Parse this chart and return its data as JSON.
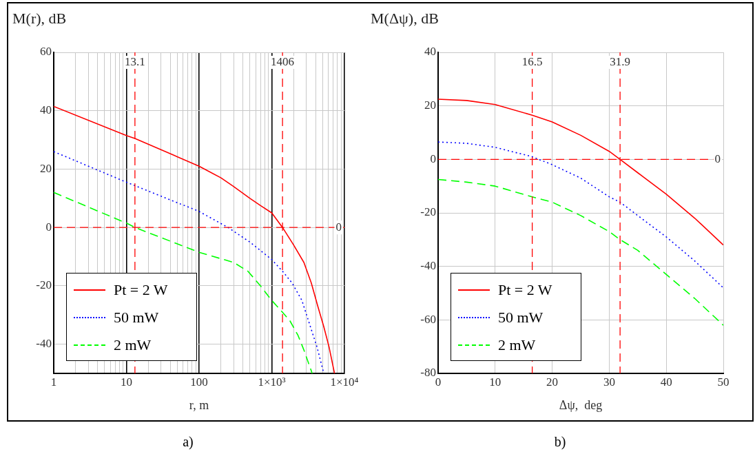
{
  "chart_data": [
    {
      "type": "line",
      "ylabel": "M(r), dB",
      "xlabel": "r, m",
      "log": "x",
      "grid": true,
      "legend": "bottom left",
      "xlim": [
        1,
        10000
      ],
      "ylim": [
        -50,
        60
      ],
      "xticks": [
        1,
        {
          "value": 2,
          "label": null
        },
        {
          "value": 3,
          "label": null
        },
        {
          "value": 4,
          "label": null
        },
        {
          "value": 5,
          "label": null
        },
        {
          "value": 6,
          "label": null
        },
        {
          "value": 7,
          "label": null
        },
        {
          "value": 8,
          "label": null
        },
        {
          "value": 9,
          "label": null
        },
        10,
        {
          "value": 20,
          "label": null
        },
        {
          "value": 30,
          "label": null
        },
        {
          "value": 40,
          "label": null
        },
        {
          "value": 50,
          "label": null
        },
        {
          "value": 60,
          "label": null
        },
        {
          "value": 70,
          "label": null
        },
        {
          "value": 80,
          "label": null
        },
        {
          "value": 90,
          "label": null
        },
        100,
        {
          "value": 200,
          "label": null
        },
        {
          "value": 300,
          "label": null
        },
        {
          "value": 400,
          "label": null
        },
        {
          "value": 500,
          "label": null
        },
        {
          "value": 600,
          "label": null
        },
        {
          "value": 700,
          "label": null
        },
        {
          "value": 800,
          "label": null
        },
        {
          "value": 900,
          "label": null
        },
        {
          "value": 1000,
          "label": "1×10³"
        },
        {
          "value": 2000,
          "label": null
        },
        {
          "value": 3000,
          "label": null
        },
        {
          "value": 4000,
          "label": null
        },
        {
          "value": 5000,
          "label": null
        },
        {
          "value": 6000,
          "label": null
        },
        {
          "value": 7000,
          "label": null
        },
        {
          "value": 8000,
          "label": null
        },
        {
          "value": 9000,
          "label": null
        },
        {
          "value": 10000,
          "label": "1×10⁴"
        }
      ],
      "yticks": [
        -40,
        -20,
        0,
        20,
        40,
        60
      ],
      "series": [
        {
          "name": "Pt = 2 W",
          "color": "#ff0000",
          "line_style": "solid",
          "x": [
            1,
            10,
            13.1,
            100,
            200,
            300,
            500,
            700,
            1000,
            1406,
            2000,
            2770,
            3500,
            4300,
            5200,
            6150,
            7300
          ],
          "values": [
            41.5,
            31.5,
            30.5,
            21,
            17,
            14,
            10,
            7.5,
            5,
            0,
            -6,
            -12,
            -19,
            -27,
            -34,
            -41,
            -50
          ]
        },
        {
          "name": "50 mW",
          "color": "#0000ff",
          "line_style": "dotted",
          "x": [
            1,
            10,
            100,
            250,
            500,
            1000,
            1406,
            1900,
            2600,
            3300,
            4200,
            5200
          ],
          "values": [
            26,
            15.5,
            5.5,
            0,
            -5,
            -11,
            -15,
            -19,
            -25,
            -33,
            -41,
            -50
          ]
        },
        {
          "name": "2 mW",
          "color": "#00ff00",
          "line_style": "dashed",
          "x": [
            1,
            10,
            13.1,
            100,
            300,
            470,
            700,
            1000,
            1400,
            1780,
            2300,
            2770,
            3600
          ],
          "values": [
            12,
            1.5,
            0,
            -8.5,
            -12,
            -15,
            -20,
            -25,
            -29,
            -32,
            -37,
            -42,
            -50
          ]
        }
      ],
      "ref_lines": [
        {
          "axis": "x",
          "value": 13.1,
          "label": "13.1",
          "color": "#ff0000",
          "line_style": "dashed"
        },
        {
          "axis": "x",
          "value": 1406,
          "label": "1406",
          "color": "#ff0000",
          "line_style": "dashed"
        },
        {
          "axis": "y",
          "value": 0,
          "label": "0",
          "color": "#ff0000",
          "line_style": "dashed"
        }
      ],
      "annotations": [
        "a)"
      ]
    },
    {
      "type": "line",
      "ylabel": "M(Δψ), dB",
      "xlabel": "Δψ,  deg",
      "grid": true,
      "legend": "bottom left",
      "xlim": [
        0,
        50
      ],
      "ylim": [
        -80,
        40
      ],
      "xticks": [
        0,
        10,
        20,
        30,
        40,
        50
      ],
      "yticks": [
        -80,
        -60,
        -40,
        -20,
        0,
        20,
        40
      ],
      "series": [
        {
          "name": "Pt = 2 W",
          "color": "#ff0000",
          "line_style": "solid",
          "x": [
            0,
            5,
            10,
            16.5,
            20,
            25,
            30,
            31.9,
            35,
            40,
            45,
            50
          ],
          "values": [
            22.5,
            22,
            20.5,
            16.5,
            14,
            9,
            3,
            0,
            -5,
            -13,
            -22,
            -32
          ]
        },
        {
          "name": "50 mW",
          "color": "#0000ff",
          "line_style": "dotted",
          "x": [
            0,
            5,
            10,
            16.5,
            20,
            25,
            30,
            31.9,
            35,
            40,
            45,
            50
          ],
          "values": [
            6.5,
            6,
            4.5,
            1,
            -2,
            -7,
            -14,
            -16,
            -21,
            -29,
            -38,
            -48
          ]
        },
        {
          "name": "2 mW",
          "color": "#00ff00",
          "line_style": "dashed",
          "x": [
            0,
            5,
            10,
            16.5,
            20,
            25,
            30,
            31.9,
            35,
            40,
            45,
            50
          ],
          "values": [
            -7.5,
            -8.5,
            -10,
            -14,
            -16,
            -21,
            -27,
            -30,
            -34,
            -43,
            -52,
            -62
          ]
        }
      ],
      "ref_lines": [
        {
          "axis": "x",
          "value": 16.5,
          "label": "16.5",
          "color": "#ff0000",
          "line_style": "dashed"
        },
        {
          "axis": "x",
          "value": 31.9,
          "label": "31.9",
          "color": "#ff0000",
          "line_style": "dashed"
        },
        {
          "axis": "y",
          "value": 0,
          "label": "0",
          "color": "#ff0000",
          "line_style": "dashed"
        }
      ],
      "annotations": [
        "b)"
      ]
    }
  ]
}
